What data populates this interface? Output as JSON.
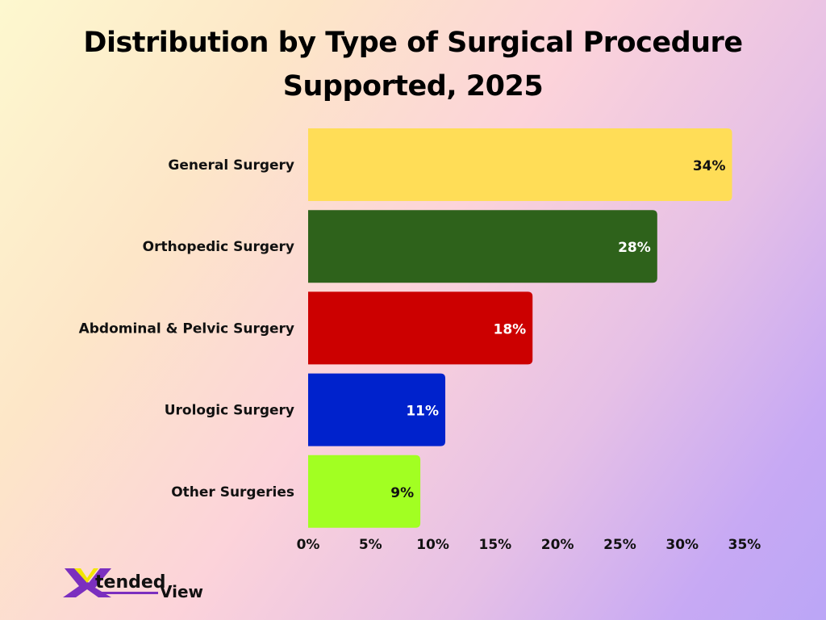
{
  "chart_data": {
    "type": "bar",
    "orientation": "horizontal",
    "title": "Distribution by Type of Surgical Procedure Supported, 2025",
    "categories": [
      "General Surgery",
      "Orthopedic Surgery",
      "Abdominal & Pelvic Surgery",
      "Urologic Surgery",
      "Other Surgeries"
    ],
    "values": [
      34,
      28,
      18,
      11,
      9
    ],
    "data_labels": [
      "34%",
      "28%",
      "18%",
      "11%",
      "9%"
    ],
    "colors": [
      "#ffdd57",
      "#2e621b",
      "#cc0000",
      "#0022cc",
      "#a2ff22"
    ],
    "label_colors": [
      "#111111",
      "#ffffff",
      "#ffffff",
      "#ffffff",
      "#111111"
    ],
    "xlim": [
      0,
      35
    ],
    "xticks": [
      0,
      5,
      10,
      15,
      20,
      25,
      30,
      35
    ],
    "xtick_labels": [
      "0%",
      "5%",
      "10%",
      "15%",
      "20%",
      "25%",
      "30%",
      "35%"
    ],
    "grid": false,
    "legend": "none"
  },
  "logo": {
    "text_part1": "Xtended",
    "text_part2": "View",
    "colors": [
      "#7b2fbf",
      "#f2e600",
      "#111111"
    ]
  }
}
